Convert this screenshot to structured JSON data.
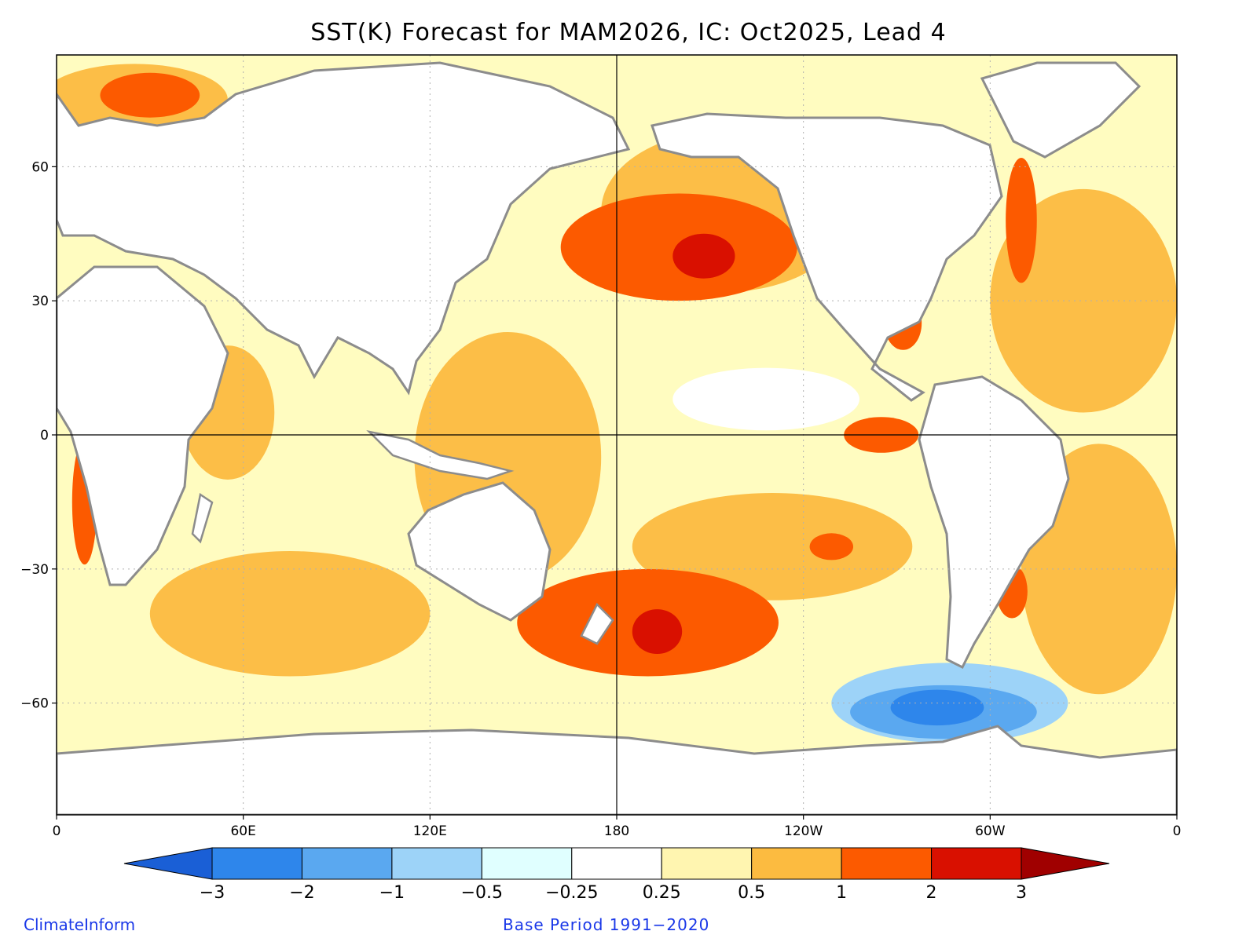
{
  "title": "SST(K) Forecast for MAM2026, IC: Oct2025, Lead 4",
  "map": {
    "lon_range": [
      0,
      360
    ],
    "lat_range": [
      -85,
      85
    ],
    "x_ticks": [
      {
        "lon": 0,
        "label": "0"
      },
      {
        "lon": 60,
        "label": "60E"
      },
      {
        "lon": 120,
        "label": "120E"
      },
      {
        "lon": 180,
        "label": "180"
      },
      {
        "lon": 240,
        "label": "120W"
      },
      {
        "lon": 300,
        "label": "60W"
      },
      {
        "lon": 360,
        "label": "0"
      }
    ],
    "y_ticks": [
      {
        "lat": 60,
        "label": "60"
      },
      {
        "lat": 30,
        "label": "30"
      },
      {
        "lat": 0,
        "label": "0"
      },
      {
        "lat": -30,
        "label": "−30"
      },
      {
        "lat": -60,
        "label": "−60"
      }
    ],
    "ocean_color": "#fffcc0",
    "land_color": "#ffffff",
    "coast_color": "#8c8c8c",
    "anomaly_regions": [
      {
        "name": "north-pacific-warm",
        "level": 1,
        "lon": 200,
        "lat": 42,
        "rlon": 38,
        "rlat": 12
      },
      {
        "name": "north-pacific-peak",
        "level": 2,
        "lon": 208,
        "lat": 40,
        "rlon": 10,
        "rlat": 5
      },
      {
        "name": "tasman-warm",
        "level": 1,
        "lon": 190,
        "lat": -42,
        "rlon": 42,
        "rlat": 12
      },
      {
        "name": "tasman-peak",
        "level": 2,
        "lon": 193,
        "lat": -44,
        "rlon": 8,
        "rlat": 5
      },
      {
        "name": "east-pacific-equatorial",
        "level": 1,
        "lon": 265,
        "lat": 0,
        "rlon": 12,
        "rlat": 4
      },
      {
        "name": "gulf-of-mexico",
        "level": 1,
        "lon": 272,
        "lat": 25,
        "rlon": 6,
        "rlat": 6
      },
      {
        "name": "benguela",
        "level": 1,
        "lon": 9,
        "lat": -15,
        "rlon": 4,
        "rlat": 14
      },
      {
        "name": "north-atlantic-northwest",
        "level": 1,
        "lon": 310,
        "lat": 48,
        "rlon": 5,
        "rlat": 14
      },
      {
        "name": "barents",
        "level": 1,
        "lon": 30,
        "lat": 76,
        "rlon": 16,
        "rlat": 5
      },
      {
        "name": "southwest-atlantic",
        "level": 1,
        "lon": 307,
        "lat": -35,
        "rlon": 5,
        "rlat": 6
      },
      {
        "name": "south-pacific-spot",
        "level": 1,
        "lon": 249,
        "lat": -25,
        "rlon": 7,
        "rlat": 3
      },
      {
        "name": "southern-ocean-cool",
        "level": -0.5,
        "lon": 287,
        "lat": -60,
        "rlon": 38,
        "rlat": 9
      },
      {
        "name": "southern-ocean-cooler",
        "level": -1,
        "lon": 285,
        "lat": -62,
        "rlon": 30,
        "rlat": 6
      },
      {
        "name": "southern-ocean-coolest",
        "level": -2,
        "lon": 283,
        "lat": -61,
        "rlon": 15,
        "rlat": 4
      },
      {
        "name": "central-pacific-neutral",
        "level": 0,
        "lon": 228,
        "lat": 8,
        "rlon": 30,
        "rlat": 7
      }
    ],
    "moderate_warm_zones": [
      {
        "lon": 145,
        "lat": -5,
        "rlon": 30,
        "rlat": 28
      },
      {
        "lon": 75,
        "lat": -40,
        "rlon": 45,
        "rlat": 14
      },
      {
        "lon": 55,
        "lat": 5,
        "rlon": 15,
        "rlat": 15
      },
      {
        "lon": 330,
        "lat": 30,
        "rlon": 30,
        "rlat": 25
      },
      {
        "lon": 335,
        "lat": -30,
        "rlon": 25,
        "rlat": 28
      },
      {
        "lon": 215,
        "lat": 50,
        "rlon": 40,
        "rlat": 18
      },
      {
        "lon": 230,
        "lat": -25,
        "rlon": 45,
        "rlat": 12
      },
      {
        "lon": 25,
        "lat": 75,
        "rlon": 30,
        "rlat": 8
      }
    ]
  },
  "colorbar": {
    "levels": [
      "−3",
      "−2",
      "−1",
      "−0.5",
      "−0.25",
      "0.25",
      "0.5",
      "1",
      "2",
      "3"
    ],
    "colors": [
      "#1a5fd6",
      "#2e86eb",
      "#5aa8f0",
      "#9dd3f8",
      "#e0ffff",
      "#ffffff",
      "#fff5b0",
      "#fcbb40",
      "#fc5a00",
      "#d91000",
      "#a00000"
    ]
  },
  "credit": "ClimateInform",
  "base_period": "Base Period 1991−2020"
}
